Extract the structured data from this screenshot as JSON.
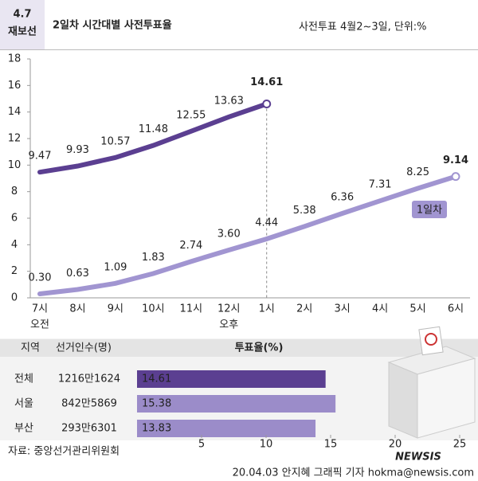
{
  "badge_top": "4.7",
  "badge_bottom": "재보선",
  "title": "2일차 시간대별 사전투표율",
  "subtitle": "사전투표 4월2~3일, 단위:%",
  "chart_data": [
    {
      "type": "line",
      "categories": [
        "7시",
        "8시",
        "9시",
        "10시",
        "11시",
        "12시",
        "1시",
        "2시",
        "3시",
        "4시",
        "5시",
        "6시"
      ],
      "annotations": [
        "오전",
        "오후"
      ],
      "series": [
        {
          "color": "#5b3f91",
          "values": [
            9.47,
            9.93,
            10.57,
            11.48,
            12.55,
            13.63,
            14.61,
            null,
            null,
            null,
            null,
            null
          ],
          "value_labels": [
            "9.47",
            "9.93",
            "10.57",
            "11.48",
            "12.55",
            "13.63",
            "14.61",
            null,
            null,
            null,
            null,
            null
          ]
        },
        {
          "name": "1일차",
          "color": "#a195d1",
          "values": [
            0.3,
            0.63,
            1.09,
            1.83,
            2.74,
            3.6,
            4.44,
            5.38,
            6.36,
            7.31,
            8.25,
            9.14
          ],
          "value_labels": [
            "0.30",
            "0.63",
            "1.09",
            "1.83",
            "2.74",
            "3.60",
            "4.44",
            "5.38",
            "6.36",
            "7.31",
            "8.25",
            "9.14"
          ]
        }
      ],
      "ylim": [
        0,
        18
      ],
      "yticks": [
        0,
        2,
        4,
        6,
        8,
        10,
        12,
        14,
        16,
        18
      ]
    },
    {
      "type": "hbar",
      "columns": [
        "지역",
        "선거인수(명)",
        "투표율(%)"
      ],
      "categories": [
        "전체",
        "서울",
        "부산"
      ],
      "voters": [
        "1216만1624",
        "842만5869",
        "293만6301"
      ],
      "values": [
        14.61,
        15.38,
        13.83
      ],
      "colors": [
        "#5b3f91",
        "#9b8cc9",
        "#9b8cc9"
      ],
      "xlim": [
        0,
        25
      ],
      "xticks": [
        5,
        10,
        15,
        20,
        25
      ]
    }
  ],
  "footer": {
    "source": "자료: 중앙선거관리위원회",
    "credit": "20.04.03 안지혜 그래픽 기자 hokma@newsis.com",
    "logo": "NEWSIS"
  }
}
